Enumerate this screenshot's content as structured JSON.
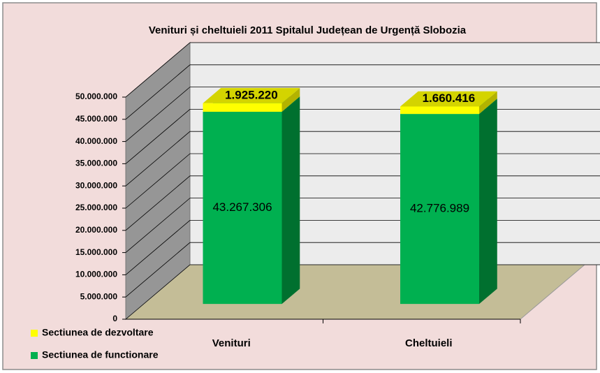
{
  "chart_data": {
    "type": "bar3d",
    "title": "Venituri și cheltuieli 2011 Spitalul Județean de Urgență Slobozia",
    "categories": [
      "Venituri",
      "Cheltuieli"
    ],
    "stacked": true,
    "series": [
      {
        "name": "Sectiunea de functionare",
        "color": "#00b050",
        "values": [
          43267306,
          42776989
        ],
        "value_labels": [
          "43.267.306",
          "42.776.989"
        ]
      },
      {
        "name": "Sectiunea de dezvoltare",
        "color": "#ffff00",
        "values": [
          1925220,
          1660416
        ],
        "value_labels": [
          "1.925.220",
          "1.660.416"
        ]
      }
    ],
    "ylim": [
      0,
      50000000
    ],
    "yticks": [
      0,
      {
        "value": 5000000,
        "label": "5.000.000"
      },
      {
        "value": 10000000,
        "label": "10.000.000"
      },
      {
        "value": 15000000,
        "label": "15.000.000"
      },
      {
        "value": 20000000,
        "label": "20.000.000"
      },
      {
        "value": 25000000,
        "label": "25.000.000"
      },
      {
        "value": 30000000,
        "label": "30.000.000"
      },
      {
        "value": 35000000,
        "label": "35.000.000"
      },
      {
        "value": 40000000,
        "label": "40.000.000"
      },
      {
        "value": 45000000,
        "label": "45.000.000"
      },
      {
        "value": 50000000,
        "label": "50.000.000"
      }
    ],
    "grid": true,
    "legend": "bottom-left"
  }
}
